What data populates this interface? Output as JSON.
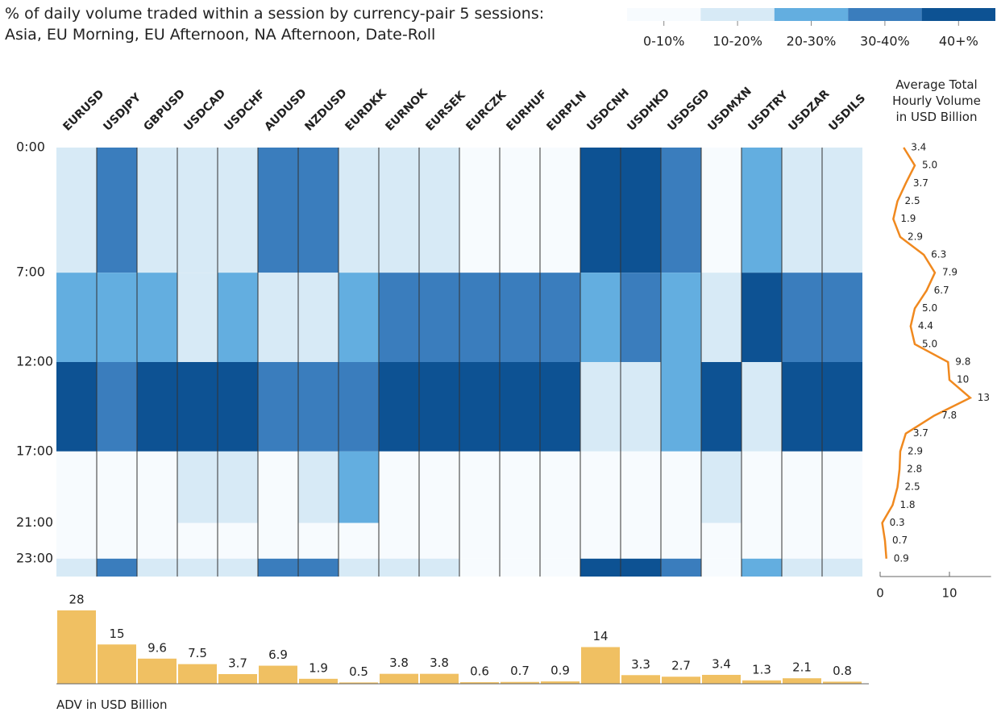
{
  "chart_data": [
    {
      "type": "heatmap",
      "title": "% of daily volume traded within a session by currency-pair 5 sessions:",
      "subtitle": "Asia, EU Morning, EU Afternoon, NA Afternoon, Date-Roll",
      "columns": [
        "EURUSD",
        "USDJPY",
        "GBPUSD",
        "USDCAD",
        "USDCHF",
        "AUDUSD",
        "NZDUSD",
        "EURDKK",
        "EURNOK",
        "EURSEK",
        "EURCZK",
        "EURHUF",
        "EURPLN",
        "USDCNH",
        "USDHKD",
        "USDSGD",
        "USDMXN",
        "USDTRY",
        "USDZAR",
        "USDILS"
      ],
      "ylim": [
        0,
        24
      ],
      "yticks": [
        {
          "value": 0,
          "label": "0:00"
        },
        {
          "value": 7,
          "label": "7:00"
        },
        {
          "value": 12,
          "label": "12:00"
        },
        {
          "value": 17,
          "label": "17:00"
        },
        {
          "value": 21,
          "label": "21:00"
        },
        {
          "value": 23,
          "label": "23:00"
        }
      ],
      "rows": [
        [
          1,
          3,
          1,
          1,
          1,
          3,
          3,
          1,
          1,
          1,
          0,
          0,
          0,
          4,
          4,
          3,
          0,
          2,
          1,
          1
        ],
        [
          2,
          2,
          2,
          1,
          2,
          1,
          1,
          2,
          3,
          3,
          3,
          3,
          3,
          2,
          3,
          2,
          1,
          4,
          3,
          3
        ],
        [
          4,
          3,
          4,
          4,
          4,
          3,
          3,
          3,
          4,
          4,
          4,
          4,
          4,
          1,
          1,
          2,
          4,
          1,
          4,
          4
        ],
        [
          0,
          0,
          0,
          1,
          1,
          0,
          1,
          2,
          0,
          0,
          0,
          0,
          0,
          0,
          0,
          0,
          1,
          0,
          0,
          0
        ],
        [
          0,
          0,
          0,
          0,
          0,
          0,
          0,
          0,
          0,
          0,
          0,
          0,
          0,
          0,
          0,
          0,
          0,
          0,
          0,
          0
        ],
        [
          1,
          3,
          1,
          1,
          1,
          3,
          3,
          1,
          1,
          1,
          0,
          0,
          0,
          4,
          4,
          3,
          0,
          2,
          1,
          1
        ]
      ],
      "legend": {
        "labels": [
          "0-10%",
          "10-20%",
          "20-30%",
          "30-40%",
          "40+%"
        ],
        "colors": [
          "#f7fbfe",
          "#d7eaf6",
          "#63aee0",
          "#3a7dbd",
          "#0d5293"
        ]
      }
    },
    {
      "type": "line",
      "title": "Average Total Hourly Volume in USD Billion",
      "color": "#f0891f",
      "xlim": [
        0,
        16
      ],
      "xticks": [
        0,
        10
      ],
      "values": [
        3.4,
        5.0,
        3.7,
        2.5,
        1.9,
        2.9,
        6.3,
        7.9,
        6.7,
        5.0,
        4.4,
        5.0,
        9.8,
        10,
        13,
        7.8,
        3.7,
        2.9,
        2.8,
        2.5,
        1.8,
        0.3,
        0.7,
        0.9
      ],
      "value_labels": [
        "3.4",
        "5.0",
        "3.7",
        "2.5",
        "1.9",
        "2.9",
        "6.3",
        "7.9",
        "6.7",
        "5.0",
        "4.4",
        "5.0",
        "9.8",
        "10",
        "13",
        "7.8",
        "3.7",
        "2.9",
        "2.8",
        "2.5",
        "1.8",
        "0.3",
        "0.7",
        "0.9"
      ]
    },
    {
      "type": "bar",
      "label": "ADV in USD Billion",
      "color": "#f0c062",
      "ylim": [
        0,
        28
      ],
      "values": [
        28,
        15,
        9.6,
        7.5,
        3.7,
        6.9,
        1.9,
        0.5,
        3.8,
        3.8,
        0.6,
        0.7,
        0.9,
        14,
        3.3,
        2.7,
        3.4,
        1.3,
        2.1,
        0.8
      ]
    }
  ]
}
